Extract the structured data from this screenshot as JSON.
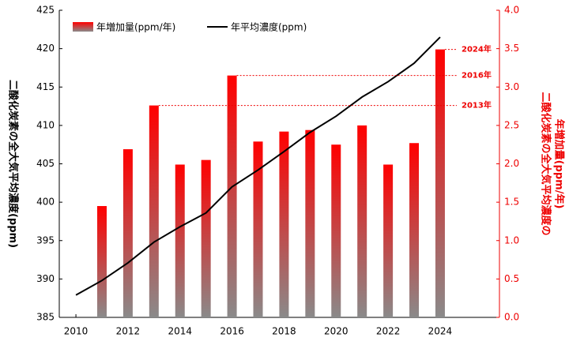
{
  "chart_data": {
    "type": "bar",
    "x": [
      2010,
      2011,
      2012,
      2013,
      2014,
      2015,
      2016,
      2017,
      2018,
      2019,
      2020,
      2021,
      2022,
      2023,
      2024
    ],
    "xlim": [
      2009.36,
      2026.28
    ],
    "xticks": [
      2010,
      2012,
      2014,
      2016,
      2018,
      2020,
      2022,
      2024
    ],
    "ylabel": "二酸化炭素の全大気平均濃度(ppm)",
    "y2label": [
      "二酸化炭素の全大気平均濃度の",
      "年増加量(ppm/年)"
    ],
    "ylim": [
      385,
      425
    ],
    "yticks": [
      385,
      390,
      395,
      400,
      405,
      410,
      415,
      420,
      425
    ],
    "y2lim": [
      0,
      4
    ],
    "y2ticks": [
      {
        "value": 0,
        "label": "0.0"
      },
      {
        "value": 0.5,
        "label": "0.5"
      },
      {
        "value": 1,
        "label": "1.0"
      },
      {
        "value": 1.5,
        "label": "1.5"
      },
      {
        "value": 2,
        "label": "2.0"
      },
      {
        "value": 2.5,
        "label": "2.5"
      },
      {
        "value": 3,
        "label": "3.0"
      },
      {
        "value": 3.5,
        "label": "3.5"
      },
      {
        "value": 4,
        "label": "4.0"
      }
    ],
    "series": [
      {
        "name": "年増加量(ppm/年)",
        "type": "bar",
        "axis": "y2",
        "color": "#ff0000",
        "values": [
          null,
          1.45,
          2.19,
          2.76,
          1.99,
          2.05,
          3.15,
          2.29,
          2.42,
          2.44,
          2.25,
          2.5,
          1.99,
          2.27,
          3.49
        ]
      },
      {
        "name": "年平均濃度(ppm)",
        "type": "line",
        "color": "#000000",
        "values": [
          387.9,
          389.8,
          392.1,
          394.8,
          396.8,
          398.6,
          402.0,
          404.2,
          406.6,
          409.1,
          411.2,
          413.7,
          415.7,
          418.1,
          421.5
        ]
      }
    ],
    "annotations": [
      {
        "x": 2013,
        "text": "2013年"
      },
      {
        "x": 2016,
        "text": "2016年"
      },
      {
        "x": 2024,
        "text": "2024年"
      }
    ]
  }
}
